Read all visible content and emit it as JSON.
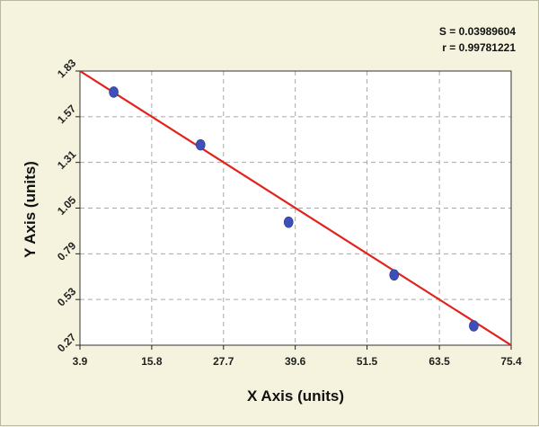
{
  "stats": {
    "s_line": "S = 0.03989604",
    "r_line": "r = 0.99781221"
  },
  "chart_data": {
    "type": "scatter",
    "xlabel": "X Axis (units)",
    "ylabel": "Y Axis (units)",
    "xlim": [
      3.9,
      75.4
    ],
    "ylim": [
      0.27,
      1.83
    ],
    "x_ticks": [
      "3.9",
      "15.8",
      "27.7",
      "39.6",
      "51.5",
      "63.5",
      "75.4"
    ],
    "y_ticks": [
      "0.27",
      "0.53",
      "0.79",
      "1.05",
      "1.31",
      "1.57",
      "1.83"
    ],
    "grid": true,
    "series": [
      {
        "points": [
          {
            "x": 9.5,
            "y": 1.71
          },
          {
            "x": 23.9,
            "y": 1.41
          },
          {
            "x": 38.5,
            "y": 0.97
          },
          {
            "x": 56.0,
            "y": 0.67
          },
          {
            "x": 69.2,
            "y": 0.38
          }
        ]
      }
    ],
    "fit_line": {
      "x": [
        3.9,
        75.4
      ],
      "y": [
        1.83,
        0.27
      ]
    },
    "colors": {
      "points": "#3d4fb8",
      "fit_line": "#e3221c",
      "grid": "#a8a8a8",
      "plot_bg": "#ffffff",
      "page_bg": "#f5f3dd"
    }
  }
}
